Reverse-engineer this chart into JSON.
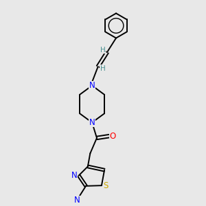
{
  "background_color": "#e8e8e8",
  "atom_colors": {
    "N": "#0000ff",
    "O": "#ff0000",
    "S": "#ccaa00",
    "C": "#000000",
    "H": "#4a9090"
  },
  "bond_color": "#000000",
  "figsize": [
    3.0,
    3.0
  ],
  "dpi": 100
}
